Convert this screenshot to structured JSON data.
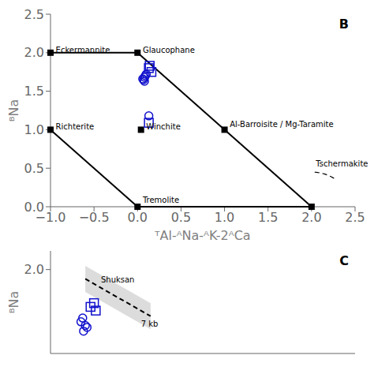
{
  "chart_data": [
    {
      "type": "scatter",
      "title": "B",
      "x_label": "ᵀAl-ᴬNa-ᴬK-2ᴬCa",
      "y_label": "ᴮNa",
      "xlim": [
        -1.0,
        2.5
      ],
      "xticks": [
        {
          "value": -1.0,
          "label": "−1.0"
        },
        {
          "value": -0.5,
          "label": "−0.5"
        },
        {
          "value": 0.0,
          "label": "0.0"
        },
        0.5,
        {
          "value": 1.0,
          "label": "1.0"
        },
        1.5,
        {
          "value": 2.0,
          "label": "2.0"
        },
        2.5
      ],
      "ylim": [
        0.0,
        2.5
      ],
      "yticks": [
        {
          "value": 0.0,
          "label": "0.0"
        },
        0.5,
        {
          "value": 1.0,
          "label": "1.0"
        },
        1.5,
        {
          "value": 2.0,
          "label": "2.0"
        },
        2.5
      ],
      "grid": false,
      "series": [
        {
          "type": "line",
          "color": "black",
          "line_style": "solid",
          "marker": "none",
          "x": [
            -1.0,
            0.0,
            2.0
          ],
          "values": [
            2.0,
            2.0,
            0.0
          ]
        },
        {
          "type": "line",
          "color": "black",
          "line_style": "solid",
          "marker": "none",
          "x": [
            -1.0,
            0.0,
            2.0
          ],
          "values": [
            1.0,
            0.0,
            0.0
          ]
        },
        {
          "type": "arc",
          "color": "black",
          "line_style": "dashed",
          "center": [
            2.0,
            0.0
          ],
          "radius": 0.45,
          "theta": [
            55,
            90
          ]
        },
        {
          "type": "scatter",
          "color": "black",
          "marker": "square",
          "x": [
            -1.0,
            0.0,
            -1.0,
            0.0,
            1.0,
            2.0
          ],
          "values": [
            2.0,
            2.0,
            1.0,
            0.0,
            1.0,
            0.0
          ]
        },
        {
          "type": "scatter",
          "color": "black",
          "marker": "square",
          "x": [
            0.04
          ],
          "values": [
            1.0
          ]
        },
        {
          "type": "scatter",
          "color": "#1111cc",
          "marker": "open_circle",
          "x": [
            0.08,
            0.09,
            0.07,
            0.1,
            0.08,
            0.06
          ],
          "values": [
            1.68,
            1.7,
            1.65,
            1.72,
            1.63,
            1.66
          ]
        },
        {
          "type": "scatter",
          "color": "#1111cc",
          "marker": "open_square",
          "x": [
            0.13,
            0.16,
            0.14
          ],
          "values": [
            1.8,
            1.75,
            1.83
          ]
        },
        {
          "type": "scatter",
          "color": "#1111cc",
          "marker": "open_circle",
          "x": [
            0.13
          ],
          "values": [
            1.18
          ]
        },
        {
          "type": "scatter",
          "color": "#1111cc",
          "marker": "open_square",
          "x": [
            0.13
          ],
          "values": [
            1.09
          ]
        }
      ],
      "annotations": [
        {
          "text": "Eckermannite",
          "x": -0.94,
          "y": 2.0
        },
        {
          "text": "Glaucophane",
          "x": 0.06,
          "y": 2.0
        },
        {
          "text": "Richterite",
          "x": -0.94,
          "y": 1.0
        },
        {
          "text": "Tremolite",
          "x": 0.06,
          "y": 0.05
        },
        {
          "text": "Al-Barroisite / Mg-Taramite",
          "x": 1.06,
          "y": 1.03
        },
        {
          "text": "Tschermakite",
          "x": 2.05,
          "y": 0.52
        },
        {
          "text": "Winchite",
          "x": 0.1,
          "y": 1.0
        }
      ]
    },
    {
      "type": "scatter",
      "title": "C",
      "y_label": "ᴮNa",
      "xlim": [
        -1.0,
        2.5
      ],
      "ylim": [
        1.55,
        2.1
      ],
      "yticks": [
        {
          "value": 2.0,
          "label": "2.0"
        }
      ],
      "tick_labels": "y",
      "grid": false,
      "series": [
        {
          "type": "band",
          "color": "lightgray",
          "x": [
            -0.6,
            0.15
          ],
          "low": [
            1.88,
            1.68
          ],
          "high": [
            2.02,
            1.82
          ]
        },
        {
          "type": "line",
          "color": "black",
          "line_style": "dashed",
          "marker": "none",
          "x": [
            -0.6,
            0.15
          ],
          "values": [
            1.95,
            1.75
          ]
        },
        {
          "type": "scatter",
          "color": "#1111cc",
          "marker": "open_circle",
          "x": [
            -0.6,
            -0.62,
            -0.65,
            -0.58,
            -0.63
          ],
          "values": [
            1.7,
            1.67,
            1.72,
            1.69,
            1.74
          ]
        },
        {
          "type": "scatter",
          "color": "#1111cc",
          "marker": "open_square",
          "x": [
            -0.5,
            -0.48,
            -0.54
          ],
          "values": [
            1.82,
            1.78,
            1.8
          ]
        }
      ],
      "annotations": [
        {
          "text": "Shuksan",
          "x": -0.42,
          "y": 1.93
        },
        {
          "text": "7 kb",
          "x": 0.04,
          "y": 1.695
        }
      ]
    }
  ]
}
